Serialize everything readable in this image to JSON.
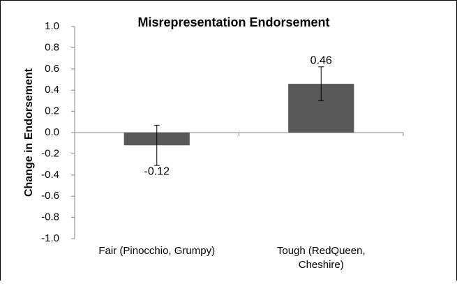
{
  "chart_data": {
    "type": "bar",
    "title": "Misrepresentation Endorsement",
    "ylabel": "Change in Endorsement",
    "categories": [
      "Fair (Pinocchio, Grumpy)",
      "Tough (RedQueen, Cheshire)"
    ],
    "values": [
      -0.12,
      0.46
    ],
    "errors": [
      0.19,
      0.16
    ],
    "color": "#595959",
    "ylim": [
      -1.0,
      1.0
    ],
    "yticks": [
      {
        "value": -1.0,
        "label": "-1.0"
      },
      {
        "value": -0.8,
        "label": "-0.8"
      },
      {
        "value": -0.6,
        "label": "-0.6"
      },
      {
        "value": -0.4,
        "label": "-0.4"
      },
      {
        "value": -0.2,
        "label": "-0.2"
      },
      {
        "value": 0,
        "label": "0.0"
      },
      {
        "value": 0.2,
        "label": "0.2"
      },
      {
        "value": 0.4,
        "label": "0.4"
      },
      {
        "value": 0.6,
        "label": "0.6"
      },
      {
        "value": 0.8,
        "label": "0.8"
      },
      {
        "value": 1.0,
        "label": "1.0"
      }
    ],
    "grid": false
  }
}
